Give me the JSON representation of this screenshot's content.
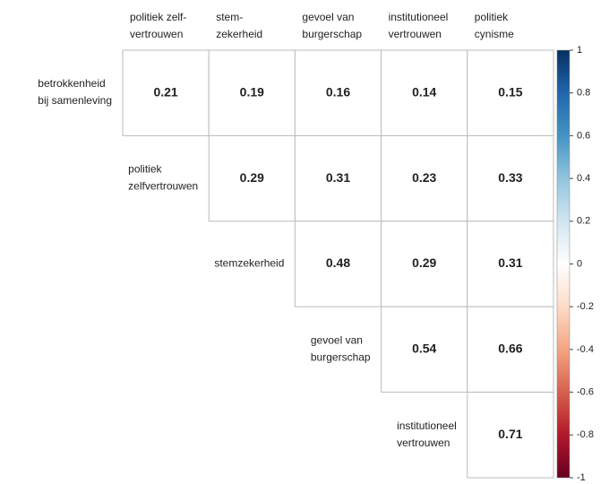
{
  "chart_data": {
    "type": "corrplot",
    "columns": [
      [
        "politiek zelf-",
        "vertrouwen"
      ],
      [
        "stem-",
        "zekerheid"
      ],
      [
        "gevoel van",
        "burgerschap"
      ],
      [
        "institutioneel",
        "vertrouwen"
      ],
      [
        "politiek",
        "cynisme"
      ]
    ],
    "rows": [
      [
        "betrokkenheid",
        "bij samenleving"
      ],
      [
        "politiek",
        "zelfvertrouwen"
      ],
      [
        "stemzekerheid"
      ],
      [
        "gevoel van",
        "burgerschap"
      ],
      [
        "institutioneel",
        "vertrouwen"
      ]
    ],
    "values": [
      [
        0.21,
        0.19,
        0.16,
        0.14,
        0.15
      ],
      [
        null,
        0.29,
        0.31,
        0.23,
        0.33
      ],
      [
        null,
        null,
        0.48,
        0.29,
        0.31
      ],
      [
        null,
        null,
        null,
        0.54,
        0.66
      ],
      [
        null,
        null,
        null,
        null,
        0.71
      ]
    ],
    "zlim": [
      -1,
      1
    ],
    "zticks": [
      1,
      0.8,
      0.6,
      0.4,
      0.2,
      0,
      -0.2,
      -0.4,
      -0.6,
      -0.8,
      -1
    ],
    "colorscale": [
      "#67001F",
      "#B2182B",
      "#D6604D",
      "#F4A582",
      "#FDDBC7",
      "#FFFFFF",
      "#D1E5F0",
      "#92C5DE",
      "#4393C3",
      "#2166AC",
      "#053061"
    ]
  }
}
